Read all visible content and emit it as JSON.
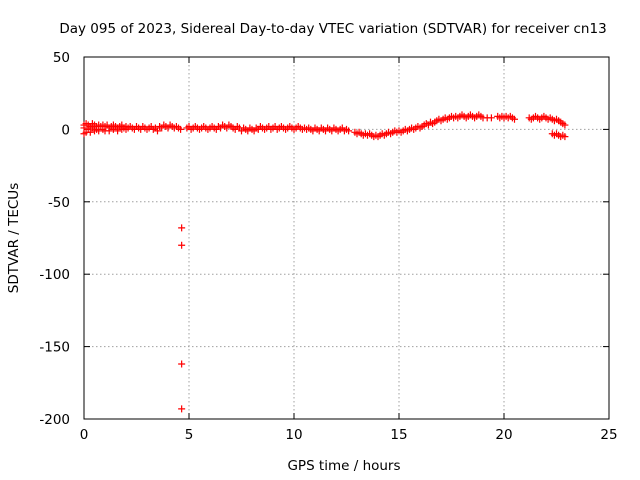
{
  "chart_data": {
    "type": "scatter",
    "title": "Day 095 of 2023, Sidereal Day-to-day VTEC variation (SDTVAR) for receiver cn13",
    "xlabel": "GPS time / hours",
    "ylabel": "SDTVAR / TECUs",
    "xlim": [
      0,
      25
    ],
    "ylim": [
      -200,
      50
    ],
    "xticks": [
      0,
      5,
      10,
      15,
      20,
      25
    ],
    "yticks": [
      50,
      0,
      -50,
      -100,
      -150,
      -200
    ],
    "xtick_labels": [
      "0",
      "5",
      "10",
      "15",
      "20",
      "25"
    ],
    "ytick_labels": [
      "50",
      "0",
      "-50",
      "-100",
      "-150",
      "-200"
    ],
    "grid": true,
    "legend": "none",
    "marker": "plus",
    "color": "#ff0000",
    "series": [
      {
        "name": "SDTVAR",
        "points": [
          [
            0.0,
            3
          ],
          [
            0.0,
            1
          ],
          [
            0.0,
            -3
          ],
          [
            0.1,
            4
          ],
          [
            0.1,
            -2
          ],
          [
            0.2,
            3
          ],
          [
            0.2,
            0
          ],
          [
            0.3,
            2
          ],
          [
            0.3,
            -2
          ],
          [
            0.4,
            4
          ],
          [
            0.4,
            1
          ],
          [
            0.5,
            3
          ],
          [
            0.5,
            -1
          ],
          [
            0.6,
            2
          ],
          [
            0.6,
            0
          ],
          [
            0.7,
            3
          ],
          [
            0.7,
            -1
          ],
          [
            0.8,
            2
          ],
          [
            0.9,
            3
          ],
          [
            0.9,
            0
          ],
          [
            1.0,
            2
          ],
          [
            1.0,
            -1
          ],
          [
            1.1,
            3
          ],
          [
            1.2,
            1
          ],
          [
            1.2,
            -1
          ],
          [
            1.3,
            2
          ],
          [
            1.4,
            3
          ],
          [
            1.4,
            0
          ],
          [
            1.5,
            2
          ],
          [
            1.6,
            1
          ],
          [
            1.6,
            -1
          ],
          [
            1.7,
            2
          ],
          [
            1.8,
            3
          ],
          [
            1.8,
            0
          ],
          [
            1.9,
            1
          ],
          [
            2.0,
            2
          ],
          [
            2.0,
            0
          ],
          [
            2.1,
            1
          ],
          [
            2.2,
            2
          ],
          [
            2.3,
            1
          ],
          [
            2.4,
            0
          ],
          [
            2.5,
            2
          ],
          [
            2.6,
            1
          ],
          [
            2.7,
            0
          ],
          [
            2.8,
            2
          ],
          [
            2.9,
            1
          ],
          [
            3.0,
            0
          ],
          [
            3.1,
            1
          ],
          [
            3.2,
            2
          ],
          [
            3.3,
            0
          ],
          [
            3.4,
            1
          ],
          [
            3.5,
            -1
          ],
          [
            3.6,
            2
          ],
          [
            3.7,
            1
          ],
          [
            3.8,
            3
          ],
          [
            3.9,
            2
          ],
          [
            4.0,
            1
          ],
          [
            4.1,
            3
          ],
          [
            4.2,
            2
          ],
          [
            4.3,
            1
          ],
          [
            4.4,
            2
          ],
          [
            4.5,
            1
          ],
          [
            4.6,
            0
          ],
          [
            4.65,
            -68
          ],
          [
            4.65,
            -80
          ],
          [
            4.65,
            -162
          ],
          [
            4.65,
            -193
          ],
          [
            4.9,
            1
          ],
          [
            5.0,
            2
          ],
          [
            5.1,
            0
          ],
          [
            5.2,
            1
          ],
          [
            5.3,
            2
          ],
          [
            5.4,
            1
          ],
          [
            5.5,
            0
          ],
          [
            5.6,
            1
          ],
          [
            5.7,
            2
          ],
          [
            5.8,
            1
          ],
          [
            5.9,
            0
          ],
          [
            6.0,
            1
          ],
          [
            6.1,
            2
          ],
          [
            6.2,
            1
          ],
          [
            6.3,
            0
          ],
          [
            6.4,
            2
          ],
          [
            6.5,
            1
          ],
          [
            6.6,
            3
          ],
          [
            6.7,
            2
          ],
          [
            6.8,
            1
          ],
          [
            6.9,
            3
          ],
          [
            7.0,
            2
          ],
          [
            7.1,
            1
          ],
          [
            7.2,
            0
          ],
          [
            7.3,
            2
          ],
          [
            7.4,
            1
          ],
          [
            7.5,
            -1
          ],
          [
            7.6,
            1
          ],
          [
            7.7,
            0
          ],
          [
            7.8,
            -1
          ],
          [
            7.9,
            1
          ],
          [
            8.0,
            0
          ],
          [
            8.1,
            -1
          ],
          [
            8.2,
            1
          ],
          [
            8.3,
            0
          ],
          [
            8.4,
            2
          ],
          [
            8.5,
            1
          ],
          [
            8.6,
            0
          ],
          [
            8.7,
            1
          ],
          [
            8.8,
            2
          ],
          [
            8.9,
            0
          ],
          [
            9.0,
            1
          ],
          [
            9.1,
            2
          ],
          [
            9.2,
            0
          ],
          [
            9.3,
            1
          ],
          [
            9.4,
            2
          ],
          [
            9.5,
            1
          ],
          [
            9.6,
            0
          ],
          [
            9.7,
            1
          ],
          [
            9.8,
            2
          ],
          [
            9.9,
            1
          ],
          [
            10.0,
            0
          ],
          [
            10.1,
            1
          ],
          [
            10.2,
            2
          ],
          [
            10.3,
            1
          ],
          [
            10.4,
            0
          ],
          [
            10.5,
            1
          ],
          [
            10.6,
            0
          ],
          [
            10.7,
            1
          ],
          [
            10.8,
            0
          ],
          [
            10.9,
            -1
          ],
          [
            11.0,
            1
          ],
          [
            11.1,
            0
          ],
          [
            11.2,
            -1
          ],
          [
            11.3,
            1
          ],
          [
            11.4,
            0
          ],
          [
            11.5,
            -1
          ],
          [
            11.6,
            1
          ],
          [
            11.7,
            0
          ],
          [
            11.8,
            -1
          ],
          [
            11.9,
            1
          ],
          [
            12.0,
            0
          ],
          [
            12.1,
            -1
          ],
          [
            12.2,
            0
          ],
          [
            12.3,
            1
          ],
          [
            12.4,
            -1
          ],
          [
            12.5,
            0
          ],
          [
            12.6,
            -1
          ],
          [
            12.9,
            -2
          ],
          [
            13.0,
            -3
          ],
          [
            13.1,
            -2
          ],
          [
            13.2,
            -3
          ],
          [
            13.3,
            -4
          ],
          [
            13.4,
            -3
          ],
          [
            13.5,
            -4
          ],
          [
            13.6,
            -3
          ],
          [
            13.7,
            -4
          ],
          [
            13.8,
            -5
          ],
          [
            13.9,
            -4
          ],
          [
            14.0,
            -5
          ],
          [
            14.1,
            -4
          ],
          [
            14.2,
            -3
          ],
          [
            14.3,
            -4
          ],
          [
            14.4,
            -3
          ],
          [
            14.5,
            -2
          ],
          [
            14.6,
            -3
          ],
          [
            14.7,
            -2
          ],
          [
            14.8,
            -1
          ],
          [
            14.9,
            -2
          ],
          [
            15.0,
            -1
          ],
          [
            15.1,
            -2
          ],
          [
            15.2,
            -1
          ],
          [
            15.3,
            0
          ],
          [
            15.4,
            -1
          ],
          [
            15.5,
            0
          ],
          [
            15.6,
            1
          ],
          [
            15.7,
            0
          ],
          [
            15.8,
            1
          ],
          [
            15.9,
            2
          ],
          [
            16.0,
            1
          ],
          [
            16.1,
            2
          ],
          [
            16.2,
            3
          ],
          [
            16.3,
            4
          ],
          [
            16.4,
            3
          ],
          [
            16.5,
            5
          ],
          [
            16.6,
            4
          ],
          [
            16.7,
            5
          ],
          [
            16.8,
            6
          ],
          [
            16.9,
            7
          ],
          [
            17.0,
            6
          ],
          [
            17.1,
            7
          ],
          [
            17.2,
            8
          ],
          [
            17.3,
            7
          ],
          [
            17.4,
            8
          ],
          [
            17.5,
            9
          ],
          [
            17.6,
            8
          ],
          [
            17.7,
            9
          ],
          [
            17.8,
            8
          ],
          [
            17.9,
            9
          ],
          [
            18.0,
            10
          ],
          [
            18.1,
            9
          ],
          [
            18.2,
            8
          ],
          [
            18.3,
            9
          ],
          [
            18.4,
            10
          ],
          [
            18.5,
            9
          ],
          [
            18.6,
            8
          ],
          [
            18.7,
            9
          ],
          [
            18.8,
            10
          ],
          [
            18.9,
            9
          ],
          [
            19.0,
            8
          ],
          [
            19.2,
            8
          ],
          [
            19.4,
            8
          ],
          [
            19.7,
            9
          ],
          [
            19.8,
            8
          ],
          [
            19.9,
            9
          ],
          [
            20.0,
            8
          ],
          [
            20.1,
            9
          ],
          [
            20.2,
            8
          ],
          [
            20.3,
            9
          ],
          [
            20.4,
            8
          ],
          [
            20.5,
            7
          ],
          [
            21.2,
            8
          ],
          [
            21.3,
            7
          ],
          [
            21.4,
            8
          ],
          [
            21.5,
            9
          ],
          [
            21.6,
            8
          ],
          [
            21.7,
            7
          ],
          [
            21.8,
            8
          ],
          [
            21.9,
            9
          ],
          [
            22.0,
            8
          ],
          [
            22.1,
            7
          ],
          [
            22.2,
            8
          ],
          [
            22.3,
            7
          ],
          [
            22.4,
            6
          ],
          [
            22.5,
            7
          ],
          [
            22.6,
            6
          ],
          [
            22.7,
            5
          ],
          [
            22.8,
            4
          ],
          [
            22.9,
            3
          ],
          [
            22.3,
            -3
          ],
          [
            22.4,
            -4
          ],
          [
            22.5,
            -3
          ],
          [
            22.6,
            -4
          ],
          [
            22.7,
            -5
          ],
          [
            22.8,
            -4
          ],
          [
            22.9,
            -5
          ]
        ]
      }
    ]
  }
}
